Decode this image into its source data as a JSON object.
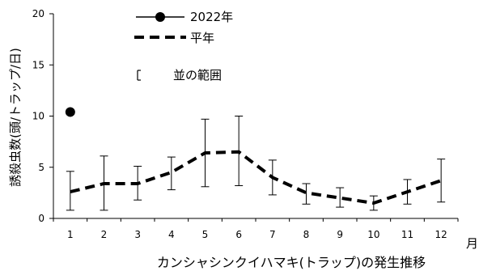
{
  "chart_data": {
    "type": "line",
    "caption": "カンシャシンクイハマキ(トラップ)の発生推移",
    "ylabel": "誘殺虫数(頭/トラップ/日)",
    "xlabel": "月",
    "categories": [
      "1",
      "2",
      "3",
      "4",
      "5",
      "6",
      "7",
      "8",
      "9",
      "10",
      "11",
      "12"
    ],
    "ylim": [
      0,
      20
    ],
    "yticks": [
      0,
      5,
      10,
      15,
      20
    ],
    "grid": false,
    "legend_position": "top-center",
    "series": [
      {
        "name": "2022年",
        "style": "marker",
        "values": [
          10.4,
          null,
          null,
          null,
          null,
          null,
          null,
          null,
          null,
          null,
          null,
          null
        ]
      },
      {
        "name": "平年",
        "style": "dashed-line",
        "values": [
          2.6,
          3.4,
          3.4,
          4.5,
          6.4,
          6.5,
          4.0,
          2.5,
          2.0,
          1.5,
          2.6,
          3.7
        ],
        "range_low": [
          0.8,
          0.8,
          1.8,
          2.8,
          3.1,
          3.2,
          2.3,
          1.4,
          1.1,
          0.8,
          1.4,
          1.6
        ],
        "range_high": [
          4.6,
          6.1,
          5.1,
          6.0,
          9.7,
          10.0,
          5.7,
          3.4,
          3.0,
          2.2,
          3.8,
          5.8
        ]
      }
    ],
    "legend": [
      {
        "label": "2022年",
        "kind": "marker-line"
      },
      {
        "label": "平年",
        "kind": "dashed-line"
      },
      {
        "label": "並の範囲",
        "kind": "errorbar"
      }
    ]
  }
}
